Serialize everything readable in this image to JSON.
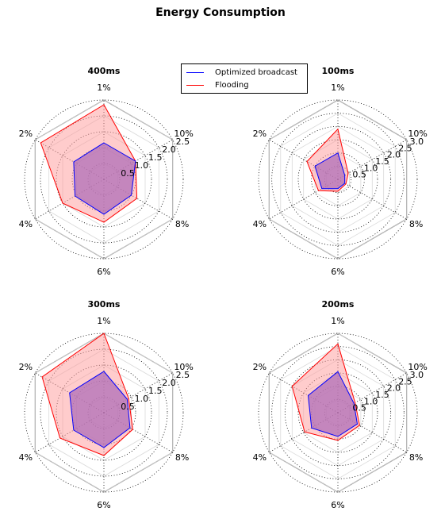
{
  "figure": {
    "title": "Energy Consumption"
  },
  "legend": {
    "items": [
      {
        "label": "Optimized broadcast",
        "color": "#0000ff"
      },
      {
        "label": "Flooding",
        "color": "#ff0000"
      }
    ]
  },
  "colors": {
    "optimized": "#0000ff",
    "flooding": "#ff0000",
    "flooding_fill": "#ff9999",
    "overlap_fill": "#b06fb8"
  },
  "chart_data": [
    {
      "type": "radar",
      "title": "400ms",
      "axes": [
        "1%",
        "10%",
        "8%",
        "6%",
        "4%",
        "2%"
      ],
      "radial_ticks": [
        "0.5",
        "1.0",
        "1.5",
        "2.0",
        "2.5"
      ],
      "rmax": 2.5,
      "grid": true,
      "series": [
        {
          "name": "Optimized broadcast",
          "values": [
            1.15,
            1.15,
            1.0,
            1.1,
            1.05,
            1.1
          ]
        },
        {
          "name": "Flooding",
          "values": [
            2.35,
            1.15,
            1.2,
            1.35,
            1.5,
            2.3
          ]
        }
      ]
    },
    {
      "type": "radar",
      "title": "100ms",
      "axes": [
        "1%",
        "10%",
        "8%",
        "6%",
        "4%",
        "2%"
      ],
      "radial_ticks": [
        "0.5",
        "1.0",
        "1.5",
        "2.0",
        "2.5",
        "3.0"
      ],
      "rmax": 3.0,
      "grid": true,
      "series": [
        {
          "name": "Optimized broadcast",
          "values": [
            1.0,
            0.3,
            0.3,
            0.35,
            0.7,
            1.0
          ]
        },
        {
          "name": "Flooding",
          "values": [
            1.9,
            0.45,
            0.35,
            0.45,
            0.85,
            1.35
          ]
        }
      ]
    },
    {
      "type": "radar",
      "title": "300ms",
      "axes": [
        "1%",
        "10%",
        "8%",
        "6%",
        "4%",
        "2%"
      ],
      "radial_ticks": [
        "0.5",
        "1.0",
        "1.5",
        "2.0",
        "2.5"
      ],
      "rmax": 2.5,
      "grid": true,
      "series": [
        {
          "name": "Optimized broadcast",
          "values": [
            1.3,
            0.85,
            0.95,
            1.1,
            1.1,
            1.25
          ]
        },
        {
          "name": "Flooding",
          "values": [
            2.5,
            0.9,
            1.05,
            1.35,
            1.6,
            2.25
          ]
        }
      ]
    },
    {
      "type": "radar",
      "title": "200ms",
      "axes": [
        "1%",
        "10%",
        "8%",
        "6%",
        "4%",
        "2%"
      ],
      "radial_ticks": [
        "0.5",
        "1.0",
        "1.5",
        "2.0",
        "2.5",
        "3.0"
      ],
      "rmax": 3.0,
      "grid": true,
      "series": [
        {
          "name": "Optimized broadcast",
          "values": [
            1.55,
            0.7,
            0.85,
            0.9,
            1.15,
            1.3
          ]
        },
        {
          "name": "Flooding",
          "values": [
            2.6,
            0.75,
            0.95,
            1.05,
            1.45,
            2.0
          ]
        }
      ]
    }
  ]
}
